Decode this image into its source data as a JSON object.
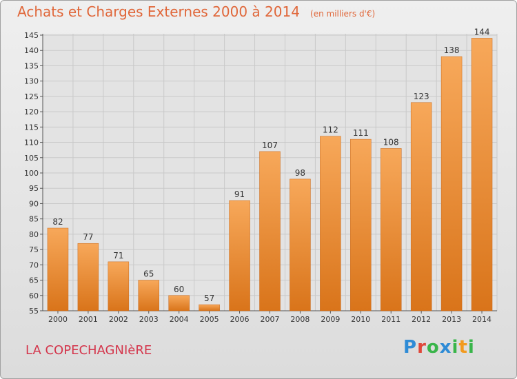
{
  "header": {
    "title": "Achats et Charges Externes 2000 à 2014",
    "subtitle": "(en milliers d'€)"
  },
  "footer": {
    "place": "LA COPECHAGNIèRE",
    "logo": {
      "p": "P",
      "r": "r",
      "o": "o",
      "x": "x",
      "i1": "i",
      "t": "t",
      "i2": "i"
    }
  },
  "colors": {
    "bar_light": "#f7a85a",
    "bar_dark": "#d9741a",
    "accent_text": "#e0673a"
  },
  "chart_data": {
    "type": "bar",
    "categories": [
      "2000",
      "2001",
      "2002",
      "2003",
      "2004",
      "2005",
      "2006",
      "2007",
      "2008",
      "2009",
      "2010",
      "2011",
      "2012",
      "2013",
      "2014"
    ],
    "values": [
      82,
      77,
      71,
      65,
      60,
      57,
      91,
      107,
      98,
      112,
      111,
      108,
      123,
      138,
      144
    ],
    "title": "Achats et Charges Externes 2000 à 2014",
    "subtitle": "(en milliers d'€)",
    "ylim": [
      55,
      145
    ],
    "yticks": [
      55,
      60,
      65,
      70,
      75,
      80,
      85,
      90,
      95,
      100,
      105,
      110,
      115,
      120,
      125,
      130,
      135,
      140,
      145
    ],
    "grid": true,
    "data_labels": true
  }
}
